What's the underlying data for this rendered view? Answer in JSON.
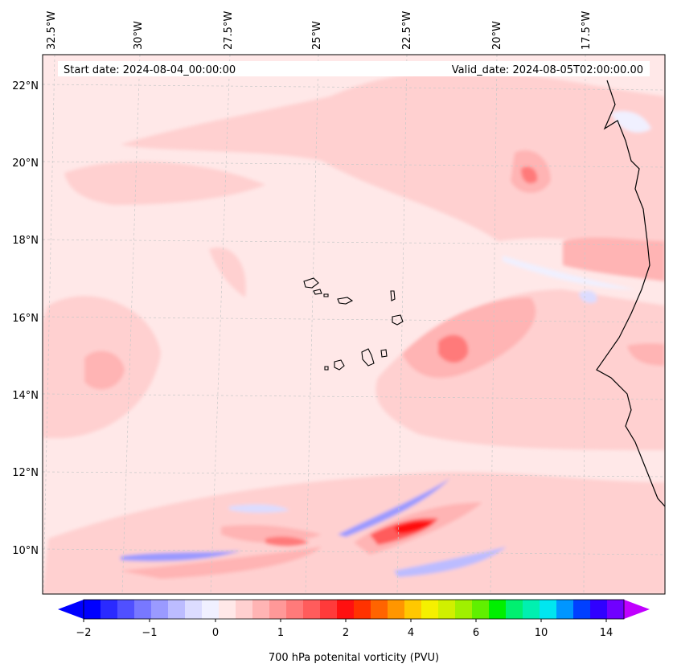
{
  "header": {
    "start_date": "Start date: 2024-08-04_00:00:00",
    "valid_date": "Valid_date: 2024-08-05T02:00:00.00"
  },
  "map": {
    "lon_labels": [
      "32.5°W",
      "30°W",
      "27.5°W",
      "25°W",
      "22.5°W",
      "20°W",
      "17.5°W"
    ],
    "lat_labels": [
      "22°N",
      "20°N",
      "18°N",
      "16°N",
      "14°N",
      "12°N",
      "10°N"
    ],
    "background_color": "#ffe8e8",
    "gridline_color": "#c8c8c8"
  },
  "colorbar": {
    "ticks": [
      "−2",
      "−1",
      "0",
      "1",
      "2",
      "4",
      "6",
      "10",
      "14"
    ],
    "label": "700 hPa potenital vorticity (PVU)",
    "colors": [
      "#0000ff",
      "#2a2aff",
      "#5050ff",
      "#7878ff",
      "#9a9aff",
      "#bcbcff",
      "#dcdcff",
      "#f0f0ff",
      "#ffe8e8",
      "#ffd0d0",
      "#ffb4b4",
      "#ff9898",
      "#ff7a7a",
      "#ff5c5c",
      "#ff3a3a",
      "#ff1010",
      "#ff3200",
      "#ff6400",
      "#ff9600",
      "#ffc800",
      "#f5f000",
      "#d0f000",
      "#a0f000",
      "#60f000",
      "#00f000",
      "#00f070",
      "#00f0b0",
      "#00e6f0",
      "#0096ff",
      "#0040ff",
      "#3000ff",
      "#7000ff"
    ],
    "under_color": "#0000ff",
    "over_color": "#c000ff"
  }
}
